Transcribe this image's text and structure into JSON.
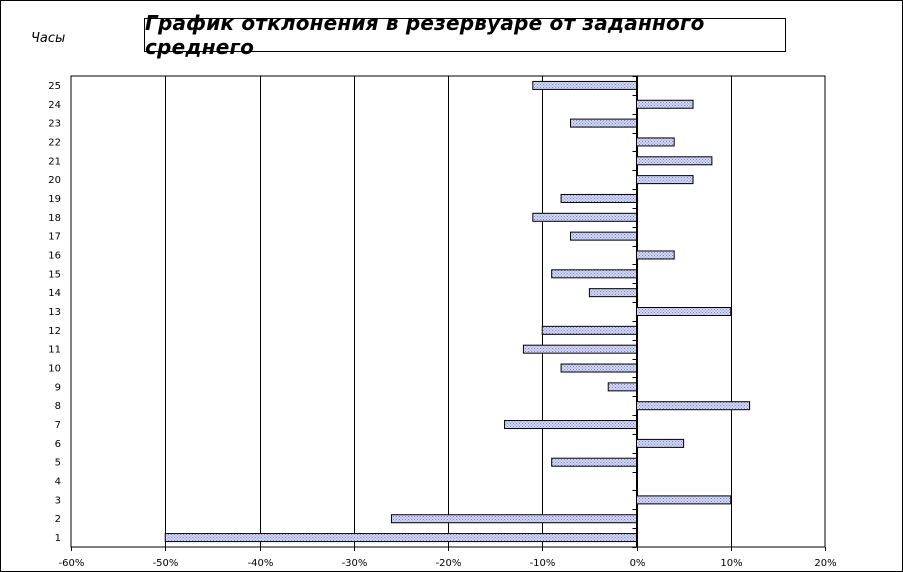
{
  "chart_data": {
    "type": "bar",
    "orientation": "horizontal",
    "title": "График отклонения в резервуаре от заданного среднего",
    "ylabel": "Часы",
    "xlabel": "",
    "categories": [
      "1",
      "2",
      "3",
      "4",
      "5",
      "6",
      "7",
      "8",
      "9",
      "10",
      "11",
      "12",
      "13",
      "14",
      "15",
      "16",
      "17",
      "18",
      "19",
      "20",
      "21",
      "22",
      "23",
      "24",
      "25"
    ],
    "values": [
      -0.5,
      -0.26,
      0.1,
      0.0,
      -0.09,
      0.05,
      -0.14,
      0.12,
      -0.03,
      -0.08,
      -0.12,
      -0.1,
      0.1,
      -0.05,
      -0.09,
      0.04,
      -0.07,
      -0.11,
      -0.08,
      0.06,
      0.08,
      0.04,
      -0.07,
      0.06,
      -0.11
    ],
    "xlim": [
      -0.6,
      0.2
    ],
    "x_ticks": [
      "-60%",
      "-50%",
      "-40%",
      "-30%",
      "-20%",
      "-10%",
      "0%",
      "10%",
      "20%"
    ],
    "grid": "vertical",
    "legend": "none",
    "colors": {
      "bar_fill": "#c8cdf0",
      "bar_stroke": "#000000",
      "grid": "#000000"
    }
  }
}
